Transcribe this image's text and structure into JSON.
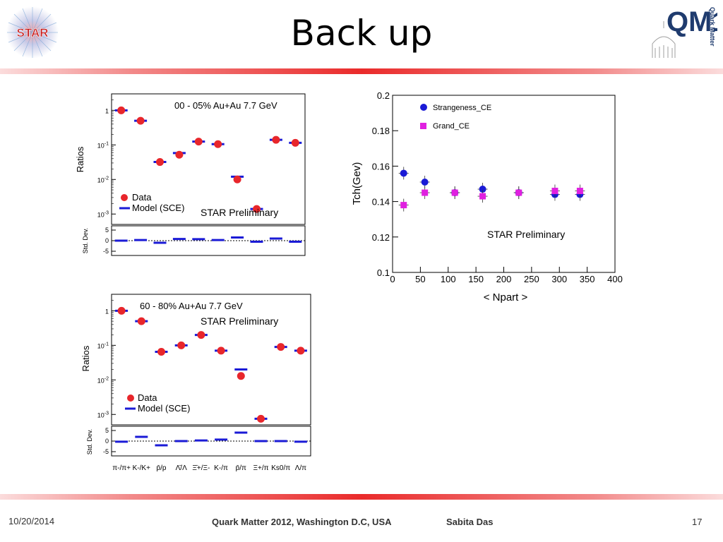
{
  "slide": {
    "title": "Back up",
    "footer": {
      "date": "10/20/2014",
      "event": "Quark Matter 2012, Washington D.C, USA",
      "author": "Sabita Das",
      "page": "17"
    },
    "logos": {
      "left_logo_text": "STAR",
      "right_logo_text": "QM12",
      "right_logo_side_text": "Quark Matter"
    },
    "colors": {
      "accent_bar": "#e8262b",
      "data_marker": "#e8262b",
      "model_marker": "#1a1ad6",
      "strangeness": "#1a1ad6",
      "grand": "#e020e0"
    }
  },
  "chart_data": [
    {
      "type": "scatter",
      "title": "00 - 05% Au+Au 7.7 GeV",
      "annotation": "STAR Preliminary",
      "ylabel": "Ratios",
      "y_scale": "log",
      "ylim": [
        0.0005,
        3
      ],
      "yticks": [
        "1",
        "10-1",
        "10-2",
        "10-3"
      ],
      "categories": [
        "π-/π+",
        "K-/K+",
        "p̄/p",
        "Λ̄/Λ",
        "Ξ̄+/Ξ-",
        "K-/π",
        "p̄/π",
        "Ξ+/π",
        "Ks0/π",
        "Λ/π"
      ],
      "series": [
        {
          "name": "Data",
          "values": [
            1.0,
            0.5,
            0.032,
            0.052,
            0.125,
            0.105,
            0.01,
            0.0014,
            0.14,
            0.115
          ]
        },
        {
          "name": "Model (SCE)",
          "values": [
            1.0,
            0.5,
            0.032,
            0.058,
            0.125,
            0.105,
            0.012,
            0.0014,
            0.14,
            0.115
          ]
        }
      ],
      "residual_panel": {
        "ylabel": "Std. Dev.",
        "ylim": [
          -7,
          7
        ],
        "yticks": [
          "5",
          "0",
          "-5"
        ],
        "values": [
          0,
          0.3,
          -1,
          0.8,
          0.7,
          0.3,
          1.5,
          -0.5,
          1,
          -0.5
        ]
      }
    },
    {
      "type": "scatter",
      "title": "60 - 80% Au+Au 7.7 GeV",
      "annotation": "STAR Preliminary",
      "ylabel": "Ratios",
      "y_scale": "log",
      "ylim": [
        0.0005,
        3
      ],
      "yticks": [
        "1",
        "10-1",
        "10-2",
        "10-3"
      ],
      "categories": [
        "π-/π+",
        "K-/K+",
        "p̄/p",
        "Λ̄/Λ",
        "Ξ̄+/Ξ-",
        "K-/π",
        "p̄/π",
        "Ξ+/π",
        "Ks0/π",
        "Λ/π"
      ],
      "series": [
        {
          "name": "Data",
          "values": [
            1.0,
            0.5,
            0.065,
            0.1,
            0.2,
            0.07,
            0.013,
            0.00075,
            0.09,
            0.07
          ]
        },
        {
          "name": "Model (SCE)",
          "values": [
            1.0,
            0.5,
            0.065,
            0.1,
            0.2,
            0.07,
            0.02,
            0.00075,
            0.09,
            0.07
          ]
        }
      ],
      "residual_panel": {
        "ylabel": "Std. Dev.",
        "ylim": [
          -7,
          7
        ],
        "yticks": [
          "5",
          "0",
          "-5"
        ],
        "values": [
          -0.3,
          2,
          -2,
          0,
          0.3,
          0.7,
          4,
          0,
          0,
          -0.3
        ]
      }
    },
    {
      "type": "scatter",
      "xlabel": "< Npart >",
      "ylabel": "Tch(Gev)",
      "annotation": "STAR Preliminary",
      "xlim": [
        0,
        400
      ],
      "ylim": [
        0.1,
        0.2
      ],
      "xticks": [
        "0",
        "50",
        "100",
        "150",
        "200",
        "250",
        "300",
        "350",
        "400"
      ],
      "yticks": [
        "0.1",
        "0.12",
        "0.14",
        "0.16",
        "0.18",
        "0.2"
      ],
      "series": [
        {
          "name": "Strangeness_CE",
          "x": [
            20,
            58,
            112,
            162,
            227,
            292,
            337
          ],
          "y": [
            0.156,
            0.151,
            0.145,
            0.147,
            0.145,
            0.144,
            0.144
          ]
        },
        {
          "name": "Grand_CE",
          "x": [
            20,
            58,
            112,
            162,
            227,
            292,
            337
          ],
          "y": [
            0.138,
            0.145,
            0.145,
            0.143,
            0.145,
            0.146,
            0.146
          ]
        }
      ]
    }
  ]
}
